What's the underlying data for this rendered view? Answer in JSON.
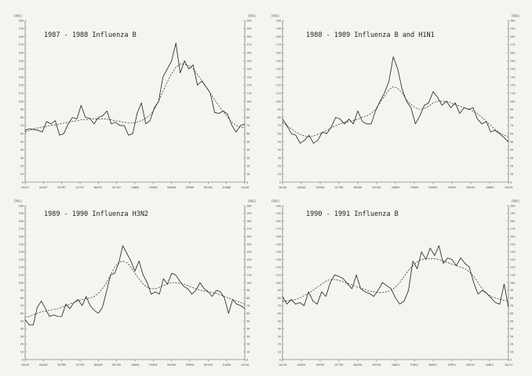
{
  "chart_data": [
    {
      "type": "line",
      "title": "1987 - 1988 Influenza B",
      "unit_label": "FMFU",
      "x_ticks": [
        "JUL87",
        "AUG87",
        "SEP87",
        "OCT87",
        "NOV87",
        "DEC87",
        "JAN88",
        "FEB88",
        "MAR88",
        "APR88",
        "MAY88",
        "JUN88",
        "JUL88"
      ],
      "y_ticks": [
        0,
        10,
        20,
        30,
        40,
        50,
        60,
        70,
        80,
        90,
        100,
        110,
        120,
        130,
        140,
        150,
        160,
        170,
        180,
        190,
        200
      ],
      "ylim": [
        0,
        200
      ],
      "series": [
        {
          "style": "solid",
          "values": [
            64,
            66,
            65,
            64,
            62,
            75,
            72,
            76,
            58,
            60,
            72,
            80,
            78,
            95,
            80,
            79,
            72,
            80,
            82,
            88,
            72,
            74,
            70,
            70,
            58,
            60,
            85,
            98,
            72,
            76,
            92,
            100,
            130,
            140,
            150,
            172,
            135,
            150,
            140,
            145,
            120,
            125,
            118,
            110,
            86,
            85,
            88,
            84,
            70,
            62,
            70,
            72
          ]
        },
        {
          "style": "dashed",
          "values": [
            62,
            64,
            66,
            67,
            68,
            69,
            70,
            71,
            72,
            73,
            74,
            75,
            76,
            77,
            77,
            78,
            78,
            78,
            78,
            78,
            77,
            76,
            75,
            74,
            73,
            73,
            74,
            76,
            79,
            83,
            90,
            100,
            112,
            124,
            134,
            142,
            146,
            146,
            144,
            140,
            133,
            126,
            118,
            110,
            102,
            94,
            87,
            80,
            74,
            70,
            68,
            67
          ]
        }
      ]
    },
    {
      "type": "line",
      "title": "1988 - 1989 Influenza B and H1N1",
      "unit_label": "FMFU",
      "x_ticks": [
        "JUL88",
        "AUG88",
        "SEP88",
        "OCT88",
        "NOV88",
        "DEC88",
        "JAN89",
        "FEB89",
        "MAR89",
        "APR89",
        "MAY89",
        "JUN89",
        "JUL89"
      ],
      "y_ticks": [
        0,
        10,
        20,
        30,
        40,
        50,
        60,
        70,
        80,
        90,
        100,
        110,
        120,
        130,
        140,
        150,
        160,
        170,
        180,
        190,
        200
      ],
      "ylim": [
        0,
        200
      ],
      "series": [
        {
          "style": "solid",
          "values": [
            78,
            70,
            60,
            58,
            48,
            52,
            58,
            48,
            52,
            62,
            60,
            68,
            80,
            78,
            72,
            78,
            72,
            88,
            75,
            72,
            72,
            88,
            100,
            110,
            124,
            155,
            140,
            115,
            100,
            92,
            72,
            82,
            95,
            98,
            112,
            105,
            95,
            100,
            92,
            98,
            85,
            92,
            90,
            92,
            78,
            72,
            75,
            62,
            64,
            60,
            55,
            50
          ]
        },
        {
          "style": "dashed",
          "values": [
            74,
            70,
            66,
            62,
            59,
            57,
            56,
            57,
            59,
            61,
            64,
            67,
            70,
            72,
            74,
            75,
            76,
            78,
            80,
            82,
            85,
            90,
            98,
            106,
            114,
            118,
            116,
            110,
            102,
            96,
            92,
            90,
            91,
            94,
            98,
            100,
            100,
            100,
            98,
            96,
            94,
            92,
            90,
            88,
            85,
            80,
            75,
            70,
            65,
            61,
            58,
            56
          ]
        }
      ]
    },
    {
      "type": "line",
      "title": "1989 - 1990 Influenza H3N2",
      "unit_label": "FMFU",
      "x_ticks": [
        "JUL89",
        "AUG89",
        "SEP89",
        "OCT89",
        "NOV89",
        "DEC89",
        "JAN90",
        "FEB90",
        "MAR90",
        "APR90",
        "MAY90",
        "JUN90",
        "JUL90"
      ],
      "y_ticks": [
        0,
        10,
        20,
        30,
        40,
        50,
        60,
        70,
        80,
        90,
        100,
        110,
        120,
        130,
        140,
        150,
        160,
        170,
        180,
        190,
        200
      ],
      "ylim": [
        0,
        200
      ],
      "series": [
        {
          "style": "solid",
          "values": [
            52,
            45,
            45,
            68,
            76,
            66,
            56,
            58,
            56,
            56,
            72,
            66,
            74,
            78,
            70,
            82,
            70,
            64,
            60,
            68,
            88,
            110,
            112,
            125,
            148,
            138,
            128,
            115,
            128,
            110,
            100,
            85,
            88,
            85,
            105,
            98,
            112,
            110,
            102,
            95,
            92,
            85,
            90,
            100,
            92,
            88,
            82,
            90,
            88,
            80,
            60,
            78,
            72,
            70,
            66
          ]
        },
        {
          "style": "dashed",
          "values": [
            55,
            56,
            58,
            60,
            62,
            63,
            64,
            65,
            66,
            68,
            70,
            72,
            74,
            76,
            78,
            79,
            80,
            82,
            86,
            92,
            100,
            110,
            120,
            126,
            128,
            126,
            120,
            112,
            105,
            98,
            94,
            92,
            92,
            94,
            96,
            98,
            100,
            100,
            99,
            98,
            96,
            94,
            92,
            90,
            89,
            88,
            87,
            86,
            84,
            82,
            80,
            78,
            76,
            74,
            72
          ]
        }
      ]
    },
    {
      "type": "line",
      "title": "1990 - 1991 Influenza B",
      "unit_label": "FMFU",
      "x_ticks": [
        "JUL90",
        "AUG90",
        "SEP90",
        "OCT90",
        "NOV90",
        "DEC90",
        "JAN91",
        "FEB91",
        "MAR91",
        "APR91",
        "MAY91",
        "JUN91",
        "JUL91"
      ],
      "y_ticks": [
        0,
        10,
        20,
        30,
        40,
        50,
        60,
        70,
        80,
        90,
        100,
        110,
        120,
        130,
        140,
        150,
        160,
        170,
        180,
        190,
        200
      ],
      "ylim": [
        0,
        200
      ],
      "series": [
        {
          "style": "solid",
          "values": [
            82,
            72,
            78,
            72,
            74,
            70,
            88,
            76,
            72,
            88,
            82,
            100,
            110,
            108,
            105,
            98,
            92,
            110,
            92,
            88,
            86,
            82,
            90,
            100,
            96,
            92,
            80,
            72,
            76,
            90,
            128,
            118,
            140,
            130,
            145,
            135,
            148,
            125,
            132,
            130,
            122,
            132,
            125,
            120,
            100,
            85,
            90,
            86,
            80,
            74,
            72,
            98,
            68
          ]
        },
        {
          "style": "dashed",
          "values": [
            76,
            76,
            77,
            78,
            80,
            83,
            86,
            90,
            94,
            98,
            102,
            104,
            104,
            103,
            101,
            99,
            97,
            95,
            93,
            91,
            89,
            88,
            87,
            87,
            88,
            90,
            94,
            100,
            108,
            116,
            122,
            127,
            130,
            131,
            131,
            131,
            130,
            128,
            126,
            124,
            122,
            120,
            118,
            114,
            108,
            100,
            92,
            86,
            82,
            80,
            78,
            77,
            76
          ]
        }
      ]
    }
  ]
}
